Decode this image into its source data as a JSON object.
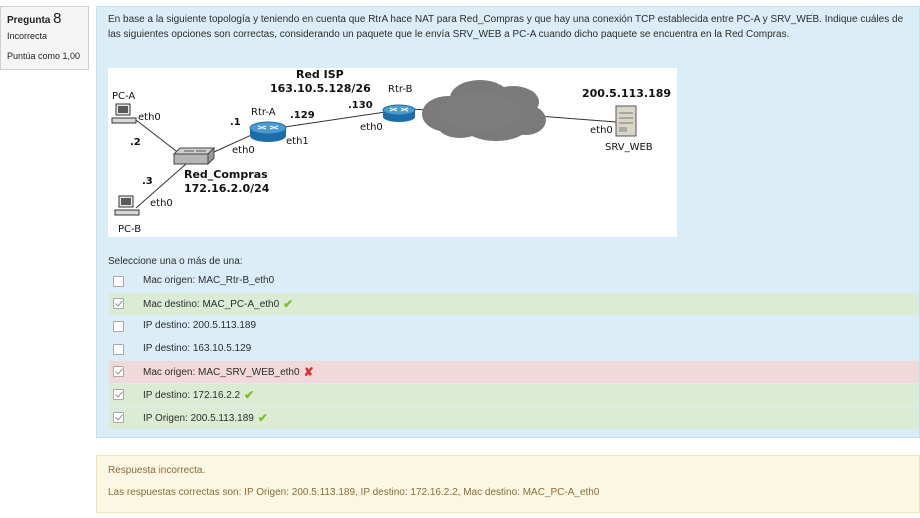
{
  "question_info": {
    "label": "Pregunta",
    "number": "8",
    "state": "Incorrecta",
    "grade": "Puntúa como 1,00"
  },
  "question_text": "En base a la siguiente topología y teniendo en cuenta que RtrA hace NAT para Red_Compras y que hay una conexión TCP establecida entre PC-A y SRV_WEB. Indique cuáles de las siguientes opciones son correctas, considerando un paquete que le envía SRV_WEB a PC-A cuando dicho paquete se encuentra en la Red Compras.",
  "diagram": {
    "pc_a": "PC-A",
    "pc_b": "PC-B",
    "eth0": "eth0",
    "eth1": "eth1",
    "pc_a_host": ".2",
    "pc_b_host": ".3",
    "rtr_a": "Rtr-A",
    "rtr_b": "Rtr-B",
    "rtr_a_lan": ".1",
    "rtr_a_wan": ".129",
    "rtr_b_wan": ".130",
    "red_isp": "Red ISP",
    "red_isp_net": "163.10.5.128/26",
    "red_compras": "Red_Compras",
    "red_compras_net": "172.16.2.0/24",
    "server_ip": "200.5.113.189",
    "server": "SRV_WEB"
  },
  "prompt": "Seleccione una o más de una:",
  "answers": [
    {
      "label": "Mac origen: MAC_Rtr-B_eth0",
      "checked": false,
      "status": "none"
    },
    {
      "label": "Mac destino: MAC_PC-A_eth0",
      "checked": true,
      "status": "correct"
    },
    {
      "label": "IP destino: 200.5.113.189",
      "checked": false,
      "status": "none"
    },
    {
      "label": "IP destino: 163.10.5.129",
      "checked": false,
      "status": "none"
    },
    {
      "label": "Mac origen: MAC_SRV_WEB_eth0",
      "checked": true,
      "status": "incorrect"
    },
    {
      "label": "IP destino: 172.16.2.2",
      "checked": true,
      "status": "correct"
    },
    {
      "label": "IP Origen: 200.5.113.189",
      "checked": true,
      "status": "correct"
    }
  ],
  "feedback": {
    "result": "Respuesta incorrecta.",
    "correct_answers": "Las respuestas correctas son: IP Origen: 200.5.113.189, IP destino: 172.16.2.2, Mac destino: MAC_PC-A_eth0"
  },
  "colors": {
    "panel_bg": "#dbedf7",
    "correct_bg": "#dcebd3",
    "incorrect_bg": "#f1d9d9",
    "feedback_bg": "#fcf7e3",
    "check_mark": "#7dbf2a",
    "cross_mark": "#d9302c"
  }
}
